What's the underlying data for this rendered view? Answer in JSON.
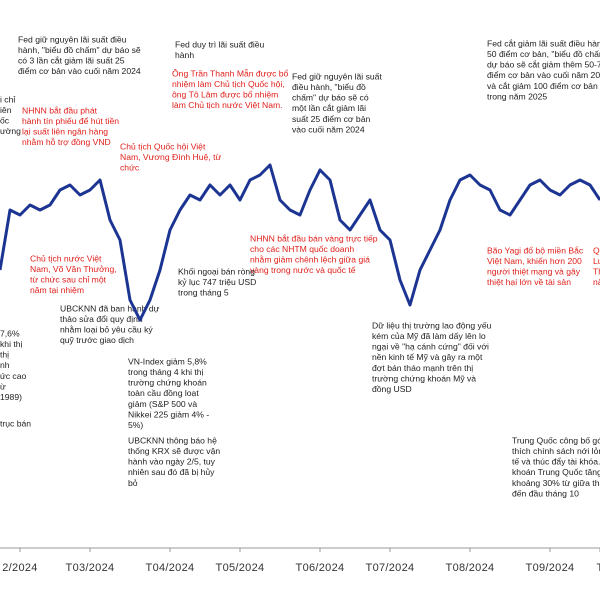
{
  "chart_data": {
    "type": "line",
    "color": "#1c3593",
    "xlim": [
      0,
      60
    ],
    "ylim": [
      0,
      300
    ],
    "xticks": [
      {
        "value": 2,
        "label": "2/2024"
      },
      {
        "value": 9,
        "label": "T03/2024"
      },
      {
        "value": 17,
        "label": "T04/2024"
      },
      {
        "value": 24,
        "label": "T05/2024"
      },
      {
        "value": 32,
        "label": "T06/2024"
      },
      {
        "value": 39,
        "label": "T07/2024"
      },
      {
        "value": 47,
        "label": "T08/2024"
      },
      {
        "value": 55,
        "label": "T09/2024"
      },
      {
        "value": 60,
        "label": "T"
      }
    ],
    "values": [
      130,
      190,
      185,
      195,
      190,
      195,
      210,
      215,
      205,
      210,
      220,
      180,
      160,
      100,
      80,
      100,
      130,
      170,
      190,
      205,
      200,
      215,
      205,
      215,
      200,
      220,
      225,
      235,
      200,
      190,
      185,
      210,
      230,
      220,
      180,
      170,
      185,
      200,
      170,
      160,
      120,
      95,
      130,
      150,
      170,
      200,
      220,
      225,
      215,
      210,
      190,
      185,
      200,
      215,
      220,
      210,
      205,
      215,
      220,
      215,
      200
    ],
    "annotations": [
      {
        "color": "black",
        "lines": [
          "Fed giữ nguyên lãi suất điều",
          "hành, \"biểu đồ chấm\" dự báo sẽ",
          "có 3 lần cắt giảm lãi suất 25",
          "điểm cơ bản vào cuối năm 2024"
        ]
      },
      {
        "color": "black",
        "lines": [
          "i chỉ",
          "iên",
          "ốc",
          "ường"
        ]
      },
      {
        "color": "red",
        "lines": [
          "NHNN bắt đầu phát",
          "hành tín phiếu để hút tiền",
          "lại suất liên ngân hàng",
          "nhằm hỗ trợ đồng VND"
        ]
      },
      {
        "color": "red",
        "lines": [
          "Chủ tịch Quốc hội Việt",
          "Nam, Vương Đình Huệ, từ",
          "chức"
        ]
      },
      {
        "color": "red",
        "lines": [
          "Chủ tịch nước Việt",
          "Nam, Võ Văn Thưởng,",
          "từ chức sau chỉ một",
          "năm tại nhiệm"
        ]
      },
      {
        "color": "black",
        "lines": [
          "Fed duy trì lãi suất điều",
          "hành"
        ]
      },
      {
        "color": "red",
        "lines": [
          "Ông Trần Thanh Mẫn được bổ",
          "nhiệm làm Chủ tịch Quốc hội,",
          "ông Tô Lâm được bổ nhiệm",
          "làm Chủ tịch nước Việt Nam."
        ]
      },
      {
        "color": "black",
        "lines": [
          "Fed giữ nguyên lãi suất",
          "điều hành, \"biểu đồ",
          "chấm\" dự báo sẽ có",
          "một lần cắt giảm lãi",
          "suất 25 điểm cơ bản",
          "vào cuối năm 2024"
        ]
      },
      {
        "color": "black",
        "lines": [
          "Fed cắt giảm lãi suất điều hành",
          "50 điểm cơ bản, \"biểu đồ chấm\"",
          "dự báo sẽ cắt giảm thêm 50-75",
          "điểm cơ bản vào cuối năm 2024",
          "và cắt giảm 100 điểm cơ bản",
          "trong năm 2025"
        ]
      },
      {
        "color": "red",
        "lines": [
          "NHNN bắt đầu bán vàng trực tiếp",
          "cho các NHTM quốc doanh",
          "nhằm giảm chênh lệch giữa giá",
          "vàng trong nước và quốc tế"
        ]
      },
      {
        "color": "black",
        "lines": [
          "Khối ngoại bán ròng",
          "kỷ lục 747 triệu USD",
          "trong tháng 5"
        ]
      },
      {
        "color": "black",
        "lines": [
          "UBCKNN đã ban hành dự",
          "thảo sửa đổi quy định",
          "nhằm loại bỏ yêu cầu ký",
          "quỹ trước giao dịch"
        ]
      },
      {
        "color": "black",
        "lines": [
          "VN-Index giảm 5,8%",
          "trong tháng 4 khi thị",
          "trường chứng khoán",
          "toàn cầu đồng loạt",
          "giảm (S&P 500 và",
          "Nikkei 225 giảm 4% -",
          "5%)"
        ]
      },
      {
        "color": "black",
        "lines": [
          "UBCKNN thông báo hệ",
          "thống KRX sẽ được vận",
          "hành vào ngày 2/5, tuy",
          "nhiên sau đó đã bị hủy",
          "bỏ"
        ]
      },
      {
        "color": "black",
        "lines": [
          "Dữ liệu thị trường lao động yếu",
          "kém của Mỹ đã làm dấy lên lo",
          "ngại về \"hạ cánh cứng\" đối với",
          "nền kinh tế Mỹ và gây ra một",
          "đợt bán tháo mạnh trên thị",
          "trường chứng khoán Mỹ và",
          "đồng USD"
        ]
      },
      {
        "color": "red",
        "lines": [
          "Bão Yagi đổ bộ miền Bắc",
          "Việt Nam, khiến hơn 200",
          "người thiệt mạng và gây",
          "thiệt hại lớn về tài sản"
        ]
      },
      {
        "color": "red",
        "lines": [
          "Qu",
          "Lu",
          "Th",
          "nă"
        ]
      },
      {
        "color": "black",
        "lines": [
          "Trung Quốc công bố gói k",
          "thích chính sách nới lỏng",
          "tế và thúc đẩy tài khóa. C",
          "khoán Trung Quốc tăng",
          "khoảng 30% từ giữa tháng",
          "đến đầu tháng 10"
        ]
      },
      {
        "color": "black",
        "lines": [
          "7,6%",
          "khi thị",
          "thị",
          "nh",
          "ức cao",
          "ừ",
          "1989)"
        ]
      },
      {
        "color": "black",
        "lines": [
          "trục bán"
        ]
      }
    ]
  }
}
